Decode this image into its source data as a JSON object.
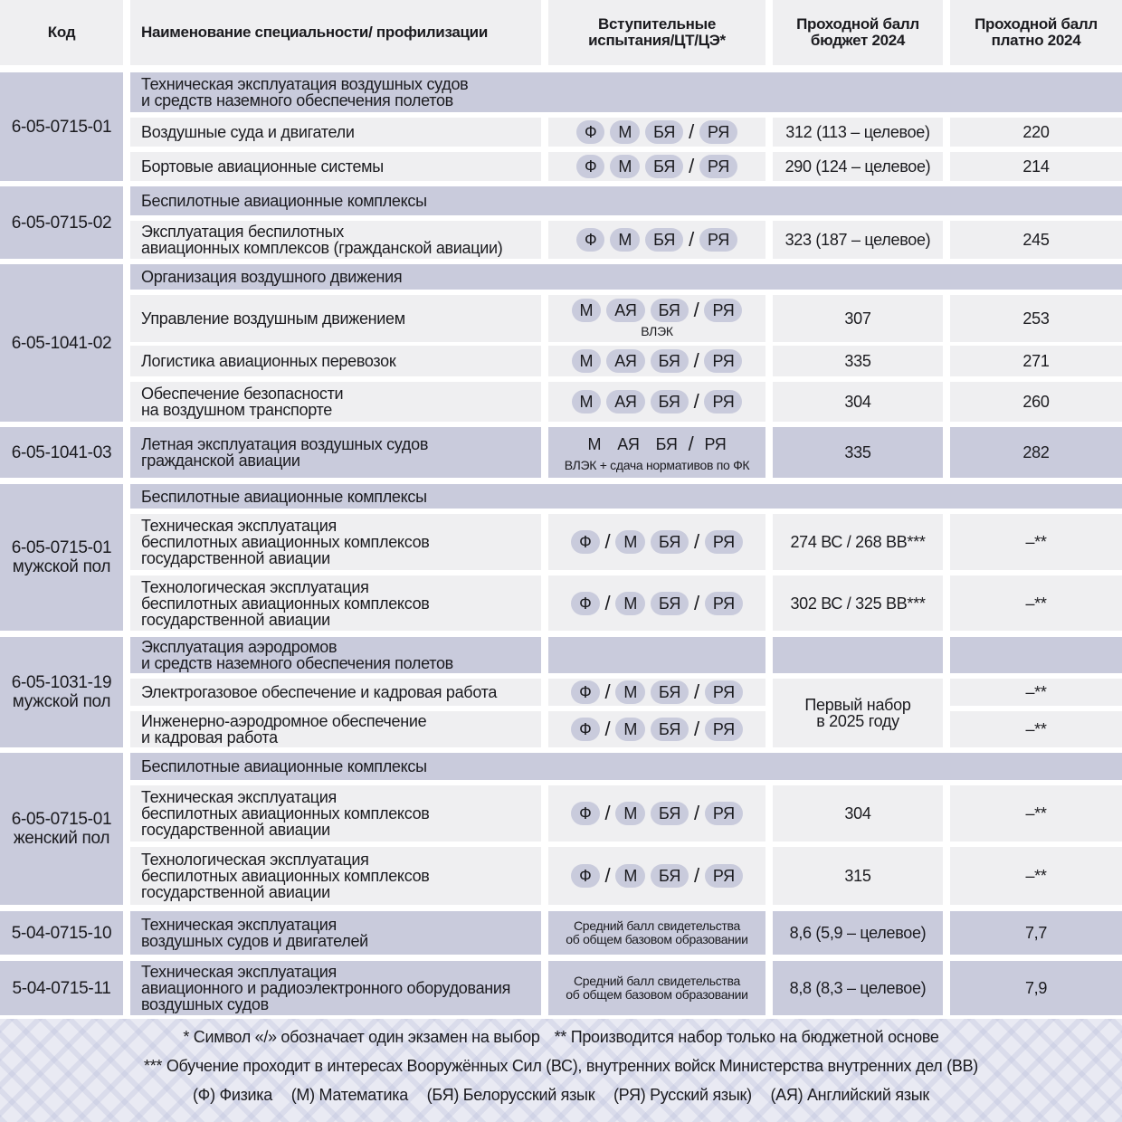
{
  "header": {
    "code": "Код",
    "name": "Наименование специальности/ профилизации",
    "exams": "Вступительные\nиспытания/ЦТ/ЦЭ*",
    "budget": "Проходной балл\nбюджет 2024",
    "paid": "Проходной балл\nплатно 2024"
  },
  "groups": [
    {
      "code": "6-05-0715-01",
      "title": "Техническая эксплуатация воздушных судов\nи средств наземного обеспечения полетов",
      "rows": [
        {
          "name": "Воздушные суда и двигатели",
          "exams": [
            "Ф",
            "М",
            "БЯ",
            "/",
            "РЯ"
          ],
          "budget": "312 (113 – целевое)",
          "paid": "220"
        },
        {
          "name": "Бортовые авиационные системы",
          "exams": [
            "Ф",
            "М",
            "БЯ",
            "/",
            "РЯ"
          ],
          "budget": "290 (124 – целевое)",
          "paid": "214"
        }
      ]
    },
    {
      "code": "6-05-0715-02",
      "title": "Беспилотные авиационные комплексы",
      "rows": [
        {
          "name": "Эксплуатация беспилотных\nавиационных комплексов (гражданской авиации)",
          "exams": [
            "Ф",
            "М",
            "БЯ",
            "/",
            "РЯ"
          ],
          "budget": "323 (187 – целевое)",
          "paid": "245"
        }
      ]
    },
    {
      "code": "6-05-1041-02",
      "title": "Организация воздушного движения",
      "rows": [
        {
          "name": "Управление воздушным движением",
          "exams": [
            "М",
            "АЯ",
            "БЯ",
            "/",
            "РЯ"
          ],
          "exam_note": "ВЛЭК",
          "budget": "307",
          "paid": "253"
        },
        {
          "name": "Логистика авиационных перевозок",
          "exams": [
            "М",
            "АЯ",
            "БЯ",
            "/",
            "РЯ"
          ],
          "budget": "335",
          "paid": "271"
        },
        {
          "name": "Обеспечение безопасности\nна воздушном транспорте",
          "exams": [
            "М",
            "АЯ",
            "БЯ",
            "/",
            "РЯ"
          ],
          "budget": "304",
          "paid": "260"
        }
      ]
    },
    {
      "code": "6-05-1041-03",
      "rows": [
        {
          "name": "Летная эксплуатация воздушных судов\nгражданской авиации",
          "exams": [
            "М",
            "АЯ",
            "БЯ",
            "/",
            "РЯ"
          ],
          "exam_note": "ВЛЭК + сдача нормативов по ФК",
          "budget": "335",
          "paid": "282"
        }
      ]
    },
    {
      "code": "6-05-0715-01\nмужской пол",
      "title": "Беспилотные авиационные комплексы",
      "rows": [
        {
          "name": "Техническая эксплуатация\nбеспилотных авиационных комплексов\nгосударственной авиации",
          "exams": [
            "Ф",
            "/",
            "М",
            "БЯ",
            "/",
            "РЯ"
          ],
          "budget": "274 ВС / 268 ВВ***",
          "paid": "–**"
        },
        {
          "name": "Технологическая эксплуатация\nбеспилотных авиационных комплексов\nгосударственной авиации",
          "exams": [
            "Ф",
            "/",
            "М",
            "БЯ",
            "/",
            "РЯ"
          ],
          "budget": "302 ВС / 325 ВВ***",
          "paid": "–**"
        }
      ]
    },
    {
      "code": "6-05-1031-19\nмужской пол",
      "title": "Эксплуатация аэродромов\nи средств наземного обеспечения полетов",
      "budget_merged": "Первый набор\nв 2025 году",
      "rows": [
        {
          "name": "Электрогазовое обеспечение и кадровая работа",
          "exams": [
            "Ф",
            "/",
            "М",
            "БЯ",
            "/",
            "РЯ"
          ],
          "paid": "–**"
        },
        {
          "name": "Инженерно-аэродромное обеспечение\nи кадровая работа",
          "exams": [
            "Ф",
            "/",
            "М",
            "БЯ",
            "/",
            "РЯ"
          ],
          "paid": "–**"
        }
      ]
    },
    {
      "code": "6-05-0715-01\nженский пол",
      "title": "Беспилотные авиационные комплексы",
      "rows": [
        {
          "name": "Техническая эксплуатация\nбеспилотных авиационных комплексов\nгосударственной авиации",
          "exams": [
            "Ф",
            "/",
            "М",
            "БЯ",
            "/",
            "РЯ"
          ],
          "budget": "304",
          "paid": "–**"
        },
        {
          "name": "Технологическая эксплуатация\nбеспилотных авиационных комплексов\nгосударственной авиации",
          "exams": [
            "Ф",
            "/",
            "М",
            "БЯ",
            "/",
            "РЯ"
          ],
          "budget": "315",
          "paid": "–**"
        }
      ]
    },
    {
      "code": "5-04-0715-10",
      "rows": [
        {
          "name": "Техническая эксплуатация\nвоздушных судов и двигателей",
          "exam_text": "Средний балл свидетельства\nоб общем базовом образовании",
          "budget": "8,6 (5,9 – целевое)",
          "paid": "7,7"
        }
      ]
    },
    {
      "code": "5-04-0715-11",
      "rows": [
        {
          "name": "Техническая эксплуатация\nавиационного и радиоэлектронного оборудования\nвоздушных судов",
          "exam_text": "Средний балл свидетельства\nоб общем базовом образовании",
          "budget": "8,8 (8,3 – целевое)",
          "paid": "7,9"
        }
      ]
    }
  ],
  "footer": {
    "note1": "* Символ «/» обозначает один экзамен на выбор",
    "note2": "** Производится набор только на бюджетной основе",
    "note3": "*** Обучение проходит в интересах Вооружённых Сил (ВС),  внутренних войск Министерства внутренних дел (ВВ)",
    "legend": [
      "(Ф) Физика",
      "(М) Математика",
      "(БЯ) Белорусский язык",
      "(РЯ) Русский язык)",
      "(АЯ) Английский язык"
    ]
  }
}
